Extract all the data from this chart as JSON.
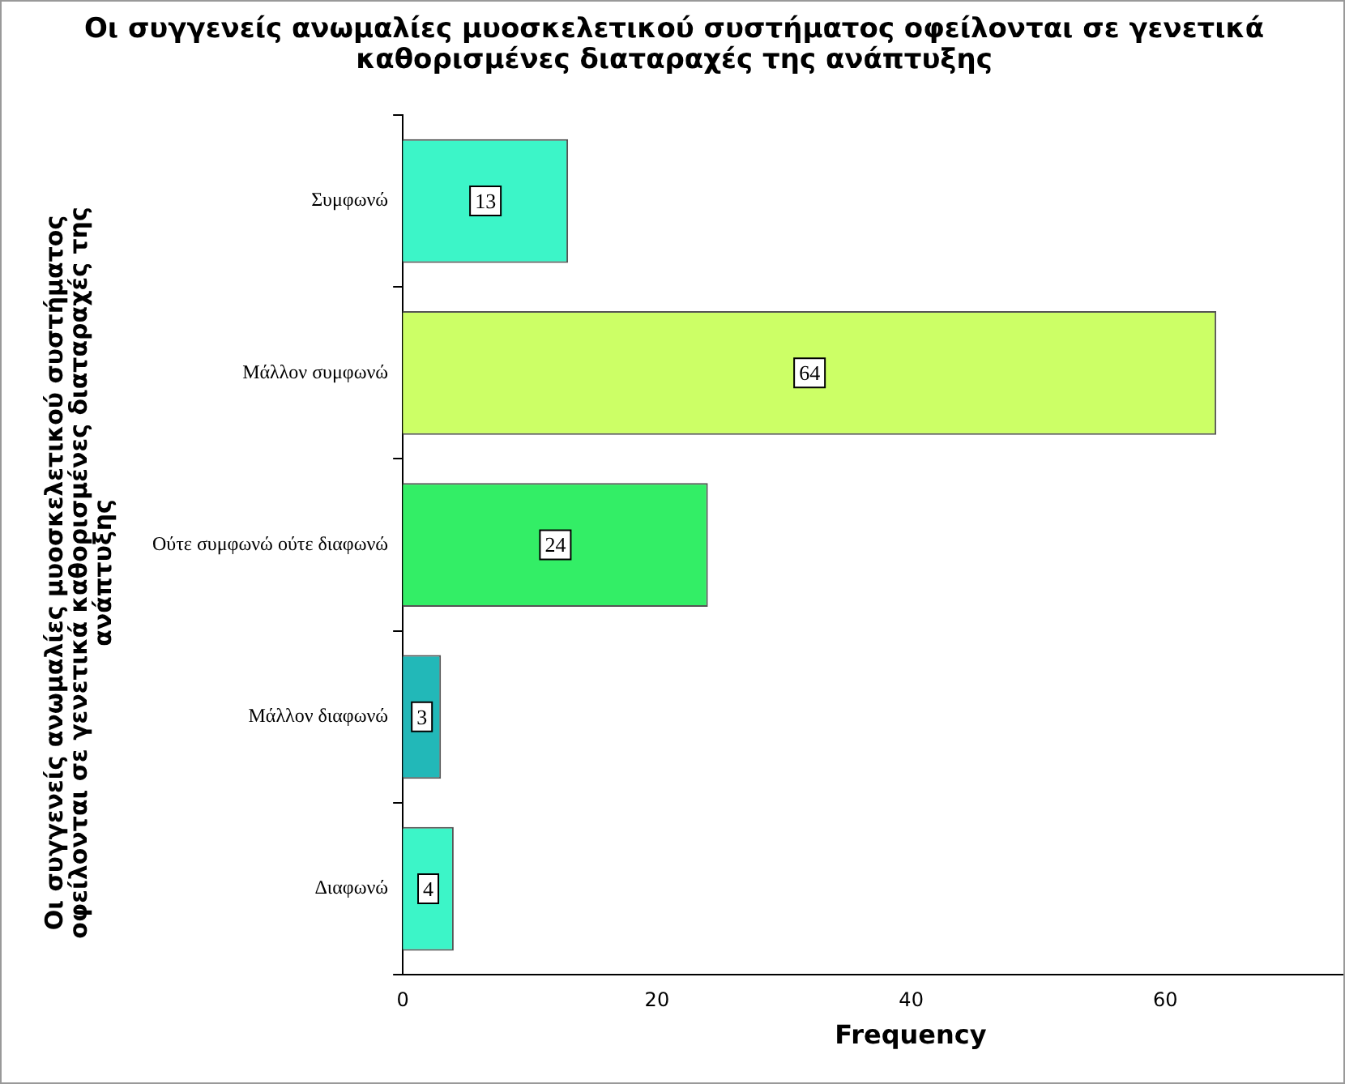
{
  "chart_data": {
    "type": "bar",
    "orientation": "horizontal",
    "title": "Οι συγγενείς ανωμαλίες μυοσκελετικού συστήματος οφείλονται σε γενετικά καθορισμένες διαταραχές της ανάπτυξης",
    "xlabel": "Frequency",
    "ylabel": "Οι συγγενείς ανωμαλίες μυοσκελετικού συστήματος οφείλονται σε γενετικά καθορισμένες διαταραχές της ανάπτυξης",
    "categories": [
      "Συμφωνώ",
      "Μάλλον συμφωνώ",
      "Ούτε συμφωνώ ούτε διαφωνώ",
      "Μάλλον διαφωνώ",
      "Διαφωνώ"
    ],
    "values": [
      13,
      64,
      24,
      3,
      4
    ],
    "colors": [
      "#3cf5c8",
      "#ccff66",
      "#33ee66",
      "#22b8b8",
      "#3cf5c8"
    ],
    "xlim": [
      0,
      74
    ],
    "xticks": [
      0,
      20,
      40,
      60
    ],
    "grid": false,
    "legend": false,
    "data_labels": true
  }
}
